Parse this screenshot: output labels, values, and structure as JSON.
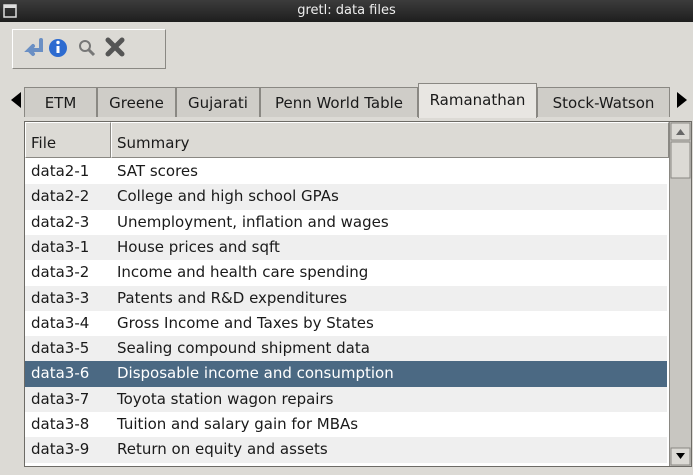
{
  "window": {
    "title": "gretl: data files"
  },
  "tabs": [
    "ETM",
    "Greene",
    "Gujarati",
    "Penn World Table",
    "Ramanathan",
    "Stock-Watson"
  ],
  "active_tab": 4,
  "columns": [
    "File",
    "Summary"
  ],
  "rows": [
    [
      "data2-1",
      "SAT scores"
    ],
    [
      "data2-2",
      "College and high school GPAs"
    ],
    [
      "data2-3",
      "Unemployment, inflation and wages"
    ],
    [
      "data3-1",
      "House prices and sqft"
    ],
    [
      "data3-2",
      "Income and health care spending"
    ],
    [
      "data3-3",
      "Patents and R&D expenditures"
    ],
    [
      "data3-4",
      "Gross Income and Taxes by States"
    ],
    [
      "data3-5",
      "Sealing compound shipment data"
    ],
    [
      "data3-6",
      "Disposable income and consumption"
    ],
    [
      "data3-7",
      "Toyota station wagon repairs"
    ],
    [
      "data3-8",
      "Tuition and salary gain for MBAs"
    ],
    [
      "data3-9",
      "Return on equity and assets"
    ]
  ],
  "selected_row": 8
}
